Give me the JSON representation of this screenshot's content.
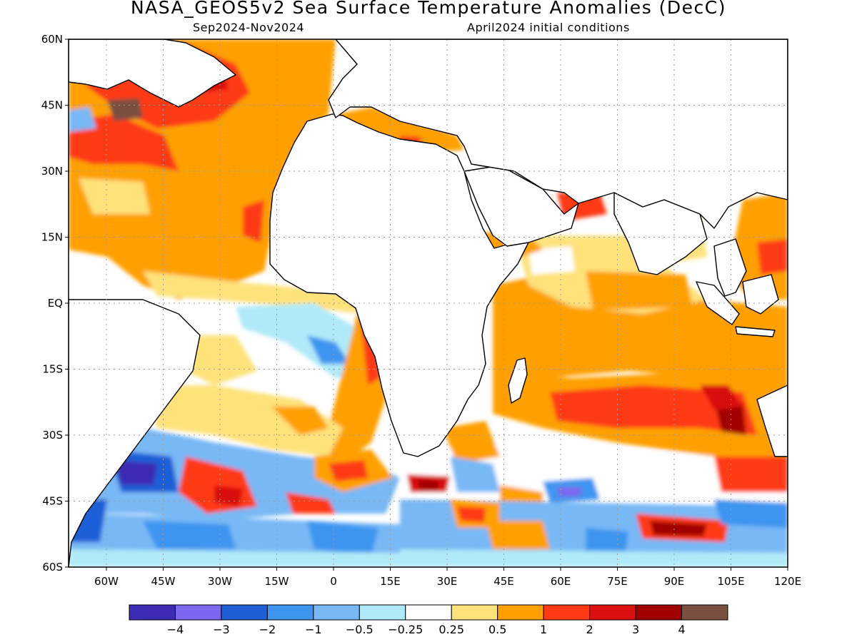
{
  "title": "NASA_GEOS5v2 Sea Surface Temperature Anomalies (DecC)",
  "subtitle_left": "Sep2024-Nov2024",
  "subtitle_right": "April2024 initial conditions",
  "map": {
    "lon_range": [
      -70,
      120
    ],
    "lat_range": [
      -60,
      60
    ],
    "lat_ticks": [
      {
        "value": 60,
        "label": "60N"
      },
      {
        "value": 45,
        "label": "45N"
      },
      {
        "value": 30,
        "label": "30N"
      },
      {
        "value": 15,
        "label": "15N"
      },
      {
        "value": 0,
        "label": "EQ"
      },
      {
        "value": -15,
        "label": "15S"
      },
      {
        "value": -30,
        "label": "30S"
      },
      {
        "value": -45,
        "label": "45S"
      },
      {
        "value": -60,
        "label": "60S"
      }
    ],
    "lon_ticks": [
      {
        "value": -60,
        "label": "60W"
      },
      {
        "value": -45,
        "label": "45W"
      },
      {
        "value": -30,
        "label": "30W"
      },
      {
        "value": -15,
        "label": "15W"
      },
      {
        "value": 0,
        "label": "0"
      },
      {
        "value": 15,
        "label": "15E"
      },
      {
        "value": 30,
        "label": "30E"
      },
      {
        "value": 45,
        "label": "45E"
      },
      {
        "value": 60,
        "label": "60E"
      },
      {
        "value": 75,
        "label": "75E"
      },
      {
        "value": 90,
        "label": "90E"
      },
      {
        "value": 105,
        "label": "105E"
      },
      {
        "value": 120,
        "label": "120E"
      }
    ],
    "grid": "dotted"
  },
  "colorbar": {
    "colors": [
      "#3d2bb4",
      "#7b68ee",
      "#1e5fd6",
      "#3d95f0",
      "#78b8f5",
      "#b0eaf8",
      "#ffffff",
      "#ffe27a",
      "#ffa000",
      "#ff3a14",
      "#d81010",
      "#a00000",
      "#7a5040"
    ],
    "labels": [
      "−4",
      "−3",
      "−2",
      "−1",
      "−0.5",
      "−0.25",
      "0.25",
      "0.5",
      "1",
      "2",
      "3",
      "4"
    ]
  }
}
